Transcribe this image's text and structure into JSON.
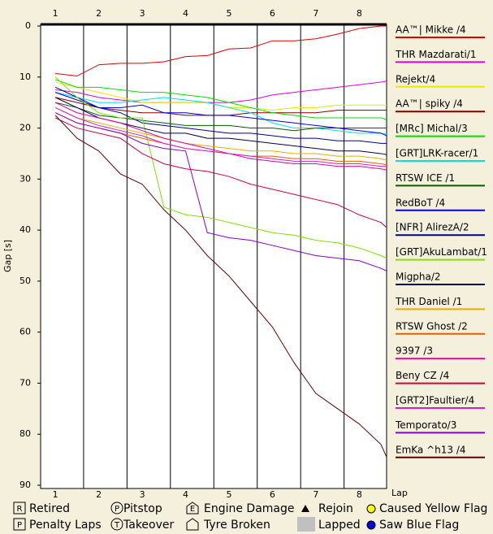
{
  "chart_data": {
    "type": "line",
    "ylabel": "Gap [s]",
    "xlabel": "Lap",
    "x": [
      1,
      1.5,
      2,
      2.5,
      3,
      3.5,
      4,
      4.5,
      5,
      5.5,
      6,
      6.5,
      7,
      7.5,
      8,
      8.5,
      8.63
    ],
    "xlim": [
      0.66,
      8.63
    ],
    "xticks": [
      1,
      2,
      3,
      4,
      5,
      6,
      7,
      8
    ],
    "x_grid": [
      1.65,
      2.65,
      3.65,
      4.65,
      5.65,
      6.65,
      7.65
    ],
    "ylim": [
      90,
      0
    ],
    "yticks": [
      0,
      10,
      20,
      30,
      40,
      50,
      60,
      70,
      80,
      90
    ],
    "series": [
      {
        "name": "AA™| Mikke /4",
        "color": "#dd0000",
        "values": [
          9.3,
          9.8,
          7.6,
          7.3,
          7.3,
          7.0,
          6.0,
          5.8,
          4.5,
          4.3,
          2.9,
          2.9,
          2.5,
          1.6,
          0.5,
          0,
          0
        ]
      },
      {
        "name": "THR Mazdarati/1",
        "color": "#e000e0",
        "values": [
          12.5,
          13,
          14,
          14.5,
          15,
          15,
          15,
          15,
          15,
          14.5,
          13.5,
          13,
          12.5,
          12,
          11.5,
          11,
          10.8
        ]
      },
      {
        "name": "Rejekt/4",
        "color": "#e8e800",
        "values": [
          11,
          12,
          13,
          14,
          15,
          15,
          15,
          15,
          16,
          16,
          16.5,
          16,
          16,
          15.5,
          15.5,
          15.5,
          15.5
        ]
      },
      {
        "name": "AA™| spiky /4",
        "color": "#800000",
        "values": [
          14,
          15,
          16,
          16.5,
          17,
          17,
          17.5,
          17.5,
          17.5,
          17,
          17,
          17,
          17,
          16.5,
          16.5,
          16.5,
          16.5
        ]
      },
      {
        "name": "[MRc] Michal/3",
        "color": "#00e000",
        "values": [
          10.5,
          12,
          12,
          12.5,
          13,
          13,
          13.5,
          14,
          15,
          16,
          17,
          17.5,
          18,
          18,
          18,
          18,
          18.3
        ]
      },
      {
        "name": "[GRT]LRK-racer/1",
        "color": "#00e0e0",
        "values": [
          13,
          14,
          15,
          15,
          14.5,
          14,
          14.5,
          15,
          16,
          17,
          19,
          20,
          20,
          20.5,
          21,
          21,
          21.2
        ]
      },
      {
        "name": "RTSW ICE /1",
        "color": "#006000",
        "values": [
          15,
          16,
          17.5,
          18,
          18.5,
          19,
          19.5,
          19.5,
          19.5,
          20,
          20,
          20.5,
          20,
          20,
          20,
          20,
          20
        ]
      },
      {
        "name": "RedBoT /4",
        "color": "#0000e0",
        "values": [
          13,
          14.5,
          16,
          16,
          15.5,
          17,
          17,
          17.5,
          17.5,
          18,
          18.5,
          19,
          19.5,
          20,
          20.5,
          21,
          21.5
        ]
      },
      {
        "name": "[NFR] AlirezA/2",
        "color": "#000090",
        "values": [
          12,
          14,
          16,
          17,
          19,
          19.5,
          20,
          20.5,
          21,
          21,
          21.5,
          22,
          22,
          22.5,
          22.5,
          23,
          23
        ]
      },
      {
        "name": "[GRT]AkuLambat/1",
        "color": "#80e000",
        "values": [
          10,
          14,
          17,
          18,
          18,
          35.5,
          37,
          37.5,
          38.5,
          39.5,
          40.5,
          41,
          42,
          42.5,
          43.5,
          45,
          45.5
        ]
      },
      {
        "name": "Migpha/2",
        "color": "#000050",
        "values": [
          14,
          16,
          18,
          19,
          20,
          21,
          21,
          22,
          22,
          22.5,
          23,
          23.5,
          24,
          24.5,
          24.5,
          25,
          25.2
        ]
      },
      {
        "name": "THR Daniel /1",
        "color": "#e0b000",
        "values": [
          16,
          18,
          19,
          20,
          21,
          22,
          23,
          23.5,
          24,
          24.5,
          24.5,
          25,
          25,
          25.5,
          25.5,
          26,
          26.3
        ]
      },
      {
        "name": "RTSW Ghost /2",
        "color": "#e06000",
        "values": [
          17,
          19,
          20,
          21,
          22,
          23,
          24,
          24.5,
          25,
          25.5,
          25.5,
          26,
          26,
          26.5,
          26.5,
          27,
          27.2
        ]
      },
      {
        "name": "9397 /3",
        "color": "#e000a0",
        "values": [
          15,
          17,
          18,
          19,
          20.5,
          22,
          23,
          24,
          25,
          26,
          26.5,
          27,
          27,
          27.5,
          27.5,
          28,
          28.2
        ]
      },
      {
        "name": "Beny CZ /4",
        "color": "#d00040",
        "values": [
          18,
          20,
          21,
          22,
          25,
          27,
          28,
          28.5,
          29.5,
          31,
          32,
          33,
          34,
          35,
          37,
          38.5,
          39.5
        ]
      },
      {
        "name": "[GRT2]Faultier/4",
        "color": "#d020d0",
        "values": [
          16,
          18,
          19.5,
          20.5,
          21.5,
          23,
          24,
          24.5,
          25,
          25.5,
          26,
          26.5,
          26.5,
          27,
          27,
          27.5,
          27.5
        ]
      },
      {
        "name": "Temporato/3",
        "color": "#8000e0",
        "values": [
          17,
          19,
          20,
          21,
          23,
          24,
          24.5,
          40.5,
          41.5,
          42,
          43,
          44,
          45,
          45.5,
          46,
          47.5,
          48
        ]
      },
      {
        "name": "EmKa ^h13 /4",
        "color": "#600000",
        "values": [
          17.5,
          22,
          24.5,
          29,
          31,
          36,
          40,
          45,
          49,
          54,
          59,
          66,
          72,
          75,
          78,
          82,
          84.5
        ]
      }
    ],
    "symbol_key": [
      {
        "symbol": "R",
        "label": "Retired"
      },
      {
        "symbol": "P",
        "label": "Pitstop"
      },
      {
        "symbol": "E",
        "label": "Engine Damage"
      },
      {
        "label": "Rejoin"
      },
      {
        "label": "Caused Yellow Flag"
      },
      {
        "symbol": "P",
        "label": "Penalty Laps"
      },
      {
        "symbol": "T",
        "label": "Takeover"
      },
      {
        "label": "Tyre Broken"
      },
      {
        "label": "Lapped"
      },
      {
        "label": "Saw Blue Flag"
      }
    ]
  }
}
